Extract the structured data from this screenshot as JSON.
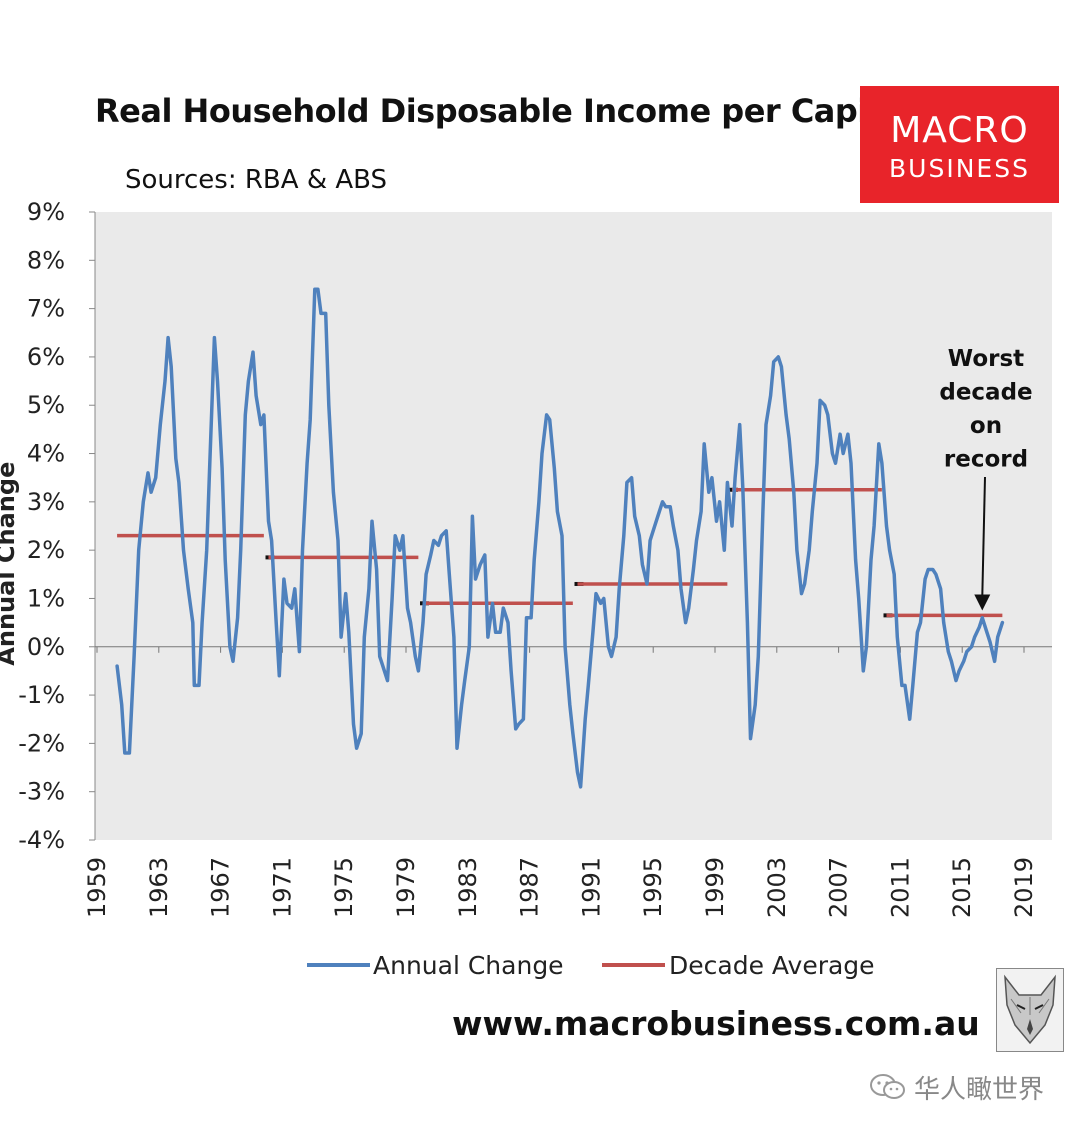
{
  "header": {
    "title": "Real Household Disposable Income per Capita",
    "subtitle": "Sources: RBA & ABS",
    "logo_line1": "MACRO",
    "logo_line2": "BUSINESS"
  },
  "footer": {
    "website": "www.macrobusiness.com.au",
    "watermark": "华人瞰世界"
  },
  "colors": {
    "annual_change": "#4f81bd",
    "decade_average": "#c0504d",
    "plot_background": "#eaeaea",
    "logo_background": "#e8242a"
  },
  "icons": [
    "fox-logo-icon",
    "wechat-icon",
    "arrow-down-icon"
  ],
  "chart_data": {
    "type": "line",
    "title": "Real Household Disposable Income per Capita",
    "subtitle": "Sources: RBA & ABS",
    "ylabel": "Annual Change",
    "xlim": [
      1959,
      2020
    ],
    "ylim": [
      -4,
      9
    ],
    "yticks": [
      -4,
      -3,
      -2,
      -1,
      0,
      1,
      2,
      3,
      4,
      5,
      6,
      7,
      8,
      9
    ],
    "ytick_labels": [
      "-4%",
      "-3%",
      "-2%",
      "-1%",
      "0%",
      "1%",
      "2%",
      "3%",
      "4%",
      "5%",
      "6%",
      "7%",
      "8%",
      "9%"
    ],
    "xtick_labels": [
      "1959",
      "1963",
      "1967",
      "1971",
      "1975",
      "1979",
      "1983",
      "1987",
      "1991",
      "1995",
      "1999",
      "2003",
      "2007",
      "2011",
      "2015",
      "2019"
    ],
    "grid": false,
    "legend_position": "bottom",
    "legend": [
      "Annual Change",
      "Decade Average"
    ],
    "series": [
      {
        "name": "Annual Change",
        "points": [
          [
            1960.3,
            -0.4
          ],
          [
            1960.6,
            -1.2
          ],
          [
            1960.8,
            -2.2
          ],
          [
            1961.1,
            -2.2
          ],
          [
            1961.4,
            -0.2
          ],
          [
            1961.7,
            2.0
          ],
          [
            1962.0,
            3.0
          ],
          [
            1962.3,
            3.6
          ],
          [
            1962.5,
            3.2
          ],
          [
            1962.8,
            3.5
          ],
          [
            1963.1,
            4.6
          ],
          [
            1963.4,
            5.5
          ],
          [
            1963.6,
            6.4
          ],
          [
            1963.8,
            5.8
          ],
          [
            1964.1,
            3.9
          ],
          [
            1964.3,
            3.4
          ],
          [
            1964.6,
            2.0
          ],
          [
            1964.9,
            1.2
          ],
          [
            1965.2,
            0.5
          ],
          [
            1965.3,
            -0.8
          ],
          [
            1965.6,
            -0.8
          ],
          [
            1965.8,
            0.5
          ],
          [
            1966.1,
            2.0
          ],
          [
            1966.3,
            3.8
          ],
          [
            1966.6,
            6.4
          ],
          [
            1966.8,
            5.5
          ],
          [
            1967.1,
            3.7
          ],
          [
            1967.3,
            1.8
          ],
          [
            1967.6,
            0.0
          ],
          [
            1967.8,
            -0.3
          ],
          [
            1968.1,
            0.6
          ],
          [
            1968.3,
            2.0
          ],
          [
            1968.6,
            4.8
          ],
          [
            1968.8,
            5.5
          ],
          [
            1969.1,
            6.1
          ],
          [
            1969.3,
            5.2
          ],
          [
            1969.6,
            4.6
          ],
          [
            1969.8,
            4.8
          ],
          [
            1970.1,
            2.6
          ],
          [
            1970.3,
            2.2
          ],
          [
            1970.6,
            0.5
          ],
          [
            1970.8,
            -0.6
          ],
          [
            1971.1,
            1.4
          ],
          [
            1971.3,
            0.9
          ],
          [
            1971.6,
            0.8
          ],
          [
            1971.8,
            1.2
          ],
          [
            1972.1,
            -0.1
          ],
          [
            1972.3,
            2.0
          ],
          [
            1972.6,
            3.8
          ],
          [
            1972.8,
            4.7
          ],
          [
            1973.1,
            7.4
          ],
          [
            1973.3,
            7.4
          ],
          [
            1973.5,
            6.9
          ],
          [
            1973.8,
            6.9
          ],
          [
            1974.0,
            5.0
          ],
          [
            1974.3,
            3.2
          ],
          [
            1974.6,
            2.2
          ],
          [
            1974.8,
            0.2
          ],
          [
            1975.1,
            1.1
          ],
          [
            1975.3,
            0.3
          ],
          [
            1975.6,
            -1.6
          ],
          [
            1975.8,
            -2.1
          ],
          [
            1976.1,
            -1.8
          ],
          [
            1976.3,
            0.2
          ],
          [
            1976.6,
            1.2
          ],
          [
            1976.8,
            2.6
          ],
          [
            1977.1,
            1.6
          ],
          [
            1977.3,
            -0.2
          ],
          [
            1977.6,
            -0.5
          ],
          [
            1977.8,
            -0.7
          ],
          [
            1978.1,
            1.0
          ],
          [
            1978.3,
            2.3
          ],
          [
            1978.6,
            2.0
          ],
          [
            1978.8,
            2.3
          ],
          [
            1979.1,
            0.8
          ],
          [
            1979.3,
            0.5
          ],
          [
            1979.6,
            -0.2
          ],
          [
            1979.8,
            -0.5
          ],
          [
            1980.1,
            0.5
          ],
          [
            1980.3,
            1.5
          ],
          [
            1980.6,
            1.9
          ],
          [
            1980.8,
            2.2
          ],
          [
            1981.1,
            2.1
          ],
          [
            1981.3,
            2.3
          ],
          [
            1981.6,
            2.4
          ],
          [
            1981.8,
            1.5
          ],
          [
            1982.1,
            0.2
          ],
          [
            1982.3,
            -2.1
          ],
          [
            1982.6,
            -1.2
          ],
          [
            1982.8,
            -0.7
          ],
          [
            1983.1,
            0.0
          ],
          [
            1983.3,
            2.7
          ],
          [
            1983.5,
            1.4
          ],
          [
            1983.8,
            1.7
          ],
          [
            1984.1,
            1.9
          ],
          [
            1984.3,
            0.2
          ],
          [
            1984.6,
            0.9
          ],
          [
            1984.8,
            0.3
          ],
          [
            1985.1,
            0.3
          ],
          [
            1985.3,
            0.8
          ],
          [
            1985.6,
            0.5
          ],
          [
            1985.8,
            -0.5
          ],
          [
            1986.1,
            -1.7
          ],
          [
            1986.3,
            -1.6
          ],
          [
            1986.6,
            -1.5
          ],
          [
            1986.8,
            0.6
          ],
          [
            1987.1,
            0.6
          ],
          [
            1987.3,
            1.8
          ],
          [
            1987.6,
            3.0
          ],
          [
            1987.8,
            4.0
          ],
          [
            1988.1,
            4.8
          ],
          [
            1988.3,
            4.7
          ],
          [
            1988.6,
            3.7
          ],
          [
            1988.8,
            2.8
          ],
          [
            1989.1,
            2.3
          ],
          [
            1989.3,
            0.0
          ],
          [
            1989.6,
            -1.2
          ],
          [
            1989.8,
            -1.8
          ],
          [
            1990.1,
            -2.6
          ],
          [
            1990.3,
            -2.9
          ],
          [
            1990.6,
            -1.5
          ],
          [
            1990.8,
            -0.8
          ],
          [
            1991.1,
            0.3
          ],
          [
            1991.3,
            1.1
          ],
          [
            1991.6,
            0.9
          ],
          [
            1991.8,
            1.0
          ],
          [
            1992.1,
            0.0
          ],
          [
            1992.3,
            -0.2
          ],
          [
            1992.6,
            0.2
          ],
          [
            1992.8,
            1.2
          ],
          [
            1993.1,
            2.3
          ],
          [
            1993.3,
            3.4
          ],
          [
            1993.6,
            3.5
          ],
          [
            1993.8,
            2.7
          ],
          [
            1994.1,
            2.3
          ],
          [
            1994.3,
            1.7
          ],
          [
            1994.6,
            1.3
          ],
          [
            1994.8,
            2.2
          ],
          [
            1995.1,
            2.5
          ],
          [
            1995.3,
            2.7
          ],
          [
            1995.6,
            3.0
          ],
          [
            1995.8,
            2.9
          ],
          [
            1996.1,
            2.9
          ],
          [
            1996.3,
            2.5
          ],
          [
            1996.6,
            2.0
          ],
          [
            1996.8,
            1.2
          ],
          [
            1997.1,
            0.5
          ],
          [
            1997.3,
            0.8
          ],
          [
            1997.6,
            1.6
          ],
          [
            1997.8,
            2.2
          ],
          [
            1998.1,
            2.8
          ],
          [
            1998.3,
            4.2
          ],
          [
            1998.6,
            3.2
          ],
          [
            1998.8,
            3.5
          ],
          [
            1999.1,
            2.6
          ],
          [
            1999.3,
            3.0
          ],
          [
            1999.6,
            2.0
          ],
          [
            1999.8,
            3.4
          ],
          [
            2000.1,
            2.5
          ],
          [
            2000.3,
            3.5
          ],
          [
            2000.6,
            4.6
          ],
          [
            2000.8,
            3.3
          ],
          [
            2001.1,
            0.5
          ],
          [
            2001.3,
            -1.9
          ],
          [
            2001.6,
            -1.2
          ],
          [
            2001.8,
            -0.2
          ],
          [
            2002.1,
            2.8
          ],
          [
            2002.3,
            4.6
          ],
          [
            2002.6,
            5.2
          ],
          [
            2002.8,
            5.9
          ],
          [
            2003.1,
            6.0
          ],
          [
            2003.3,
            5.8
          ],
          [
            2003.6,
            4.8
          ],
          [
            2003.8,
            4.3
          ],
          [
            2004.1,
            3.2
          ],
          [
            2004.3,
            2.0
          ],
          [
            2004.6,
            1.1
          ],
          [
            2004.8,
            1.3
          ],
          [
            2005.1,
            2.0
          ],
          [
            2005.3,
            2.8
          ],
          [
            2005.6,
            3.8
          ],
          [
            2005.8,
            5.1
          ],
          [
            2006.1,
            5.0
          ],
          [
            2006.3,
            4.8
          ],
          [
            2006.6,
            4.0
          ],
          [
            2006.8,
            3.8
          ],
          [
            2007.1,
            4.4
          ],
          [
            2007.3,
            4.0
          ],
          [
            2007.6,
            4.4
          ],
          [
            2007.8,
            3.8
          ],
          [
            2008.1,
            1.8
          ],
          [
            2008.3,
            1.0
          ],
          [
            2008.6,
            -0.5
          ],
          [
            2008.8,
            0.0
          ],
          [
            2009.1,
            1.8
          ],
          [
            2009.3,
            2.5
          ],
          [
            2009.6,
            4.2
          ],
          [
            2009.8,
            3.8
          ],
          [
            2010.1,
            2.5
          ],
          [
            2010.3,
            2.0
          ],
          [
            2010.6,
            1.5
          ],
          [
            2010.8,
            0.2
          ],
          [
            2011.1,
            -0.8
          ],
          [
            2011.3,
            -0.8
          ],
          [
            2011.6,
            -1.5
          ],
          [
            2011.8,
            -0.8
          ],
          [
            2012.1,
            0.3
          ],
          [
            2012.3,
            0.5
          ],
          [
            2012.6,
            1.4
          ],
          [
            2012.8,
            1.6
          ],
          [
            2013.1,
            1.6
          ],
          [
            2013.3,
            1.5
          ],
          [
            2013.6,
            1.2
          ],
          [
            2013.8,
            0.5
          ],
          [
            2014.1,
            -0.1
          ],
          [
            2014.3,
            -0.3
          ],
          [
            2014.6,
            -0.7
          ],
          [
            2014.8,
            -0.5
          ],
          [
            2015.1,
            -0.3
          ],
          [
            2015.3,
            -0.1
          ],
          [
            2015.6,
            0.0
          ],
          [
            2015.8,
            0.2
          ],
          [
            2016.1,
            0.4
          ],
          [
            2016.3,
            0.6
          ],
          [
            2016.6,
            0.3
          ],
          [
            2016.8,
            0.1
          ],
          [
            2017.1,
            -0.3
          ],
          [
            2017.3,
            0.2
          ],
          [
            2017.6,
            0.5
          ]
        ]
      },
      {
        "name": "Decade Average",
        "segments": [
          {
            "x": [
              1960.3,
              1969.8
            ],
            "y": 2.3
          },
          {
            "x": [
              1970.1,
              1979.8
            ],
            "y": 1.85
          },
          {
            "x": [
              1980.1,
              1989.8
            ],
            "y": 0.9
          },
          {
            "x": [
              1990.1,
              1999.8
            ],
            "y": 1.3
          },
          {
            "x": [
              2000.1,
              2009.8
            ],
            "y": 3.25
          },
          {
            "x": [
              2010.1,
              2017.6
            ],
            "y": 0.65
          }
        ]
      }
    ],
    "annotations": [
      {
        "text": [
          "Worst",
          "decade",
          "on",
          "record"
        ],
        "arrow_to": [
          2016.3,
          0.75
        ]
      }
    ]
  }
}
